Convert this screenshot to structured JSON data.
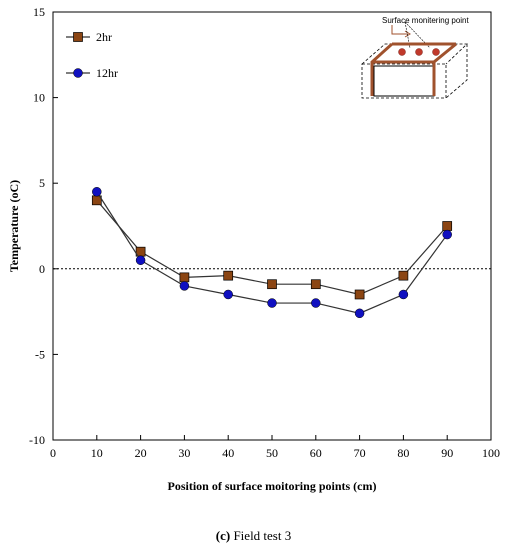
{
  "chart_data": {
    "type": "line",
    "title": "",
    "xlabel": "Position of surface moitoring points (cm)",
    "ylabel": "Temperature  (oC)",
    "xlim": [
      0,
      100
    ],
    "ylim": [
      -10,
      15
    ],
    "xticks": [
      0,
      10,
      20,
      30,
      40,
      50,
      60,
      70,
      80,
      90,
      100
    ],
    "yticks": [
      -10,
      -5,
      0,
      5,
      10,
      15
    ],
    "x": [
      10,
      20,
      30,
      40,
      50,
      60,
      70,
      80,
      90
    ],
    "series": [
      {
        "name": "2hr",
        "marker": "square",
        "color": "#8b4513",
        "values": [
          4.0,
          1.0,
          -0.5,
          -0.4,
          -0.9,
          -0.9,
          -1.5,
          -0.4,
          2.5
        ]
      },
      {
        "name": "12hr",
        "marker": "circle",
        "color": "#1010c0",
        "values": [
          4.5,
          0.5,
          -1.0,
          -1.5,
          -2.0,
          -2.0,
          -2.6,
          -1.5,
          2.0
        ]
      }
    ],
    "reference_line": {
      "y": 0,
      "style": "dashed"
    },
    "grid": false,
    "legend_position": "top-left",
    "inset": {
      "label": "Surface monitering point"
    }
  },
  "caption": {
    "tag": "(c)",
    "text": " Field test 3"
  }
}
